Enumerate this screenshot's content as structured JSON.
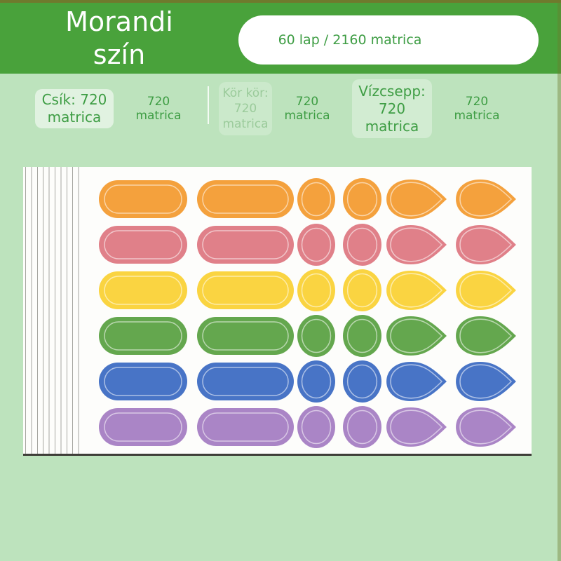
{
  "header": {
    "title": "Morandi\nszín",
    "count_badge": "60 lap / 2160 matrica"
  },
  "summary": {
    "stripe": {
      "badge": "Csík: 720\nmatrica",
      "value": "720 matrica"
    },
    "circle": {
      "badge": "Kör kör:\n720\nmatrica",
      "value": "720 matrica"
    },
    "teardrop": {
      "badge": "Vízcsepp:\n720\nmatrica",
      "value": "720 matrica"
    }
  },
  "stickers": {
    "shapes_per_row": [
      "pill",
      "pill",
      "circle",
      "circle",
      "teardrop",
      "teardrop"
    ],
    "rows": [
      {
        "name": "orange",
        "color": "#F4A13D"
      },
      {
        "name": "pink",
        "color": "#E08089"
      },
      {
        "name": "yellow",
        "color": "#FAD441"
      },
      {
        "name": "green",
        "color": "#64A74E"
      },
      {
        "name": "blue",
        "color": "#4874C6"
      },
      {
        "name": "purple",
        "color": "#AA85C6"
      }
    ],
    "outline_color": "rgba(255,255,255,0.55)"
  },
  "colors": {
    "header_bg": "#49A23B",
    "page_bg": "#BDE3BD",
    "accent_text": "#3E9D44",
    "faded_text": "#9BCB9B",
    "top_strip": "#6F7A2D",
    "sheet_bg": "#FDFDFB"
  }
}
